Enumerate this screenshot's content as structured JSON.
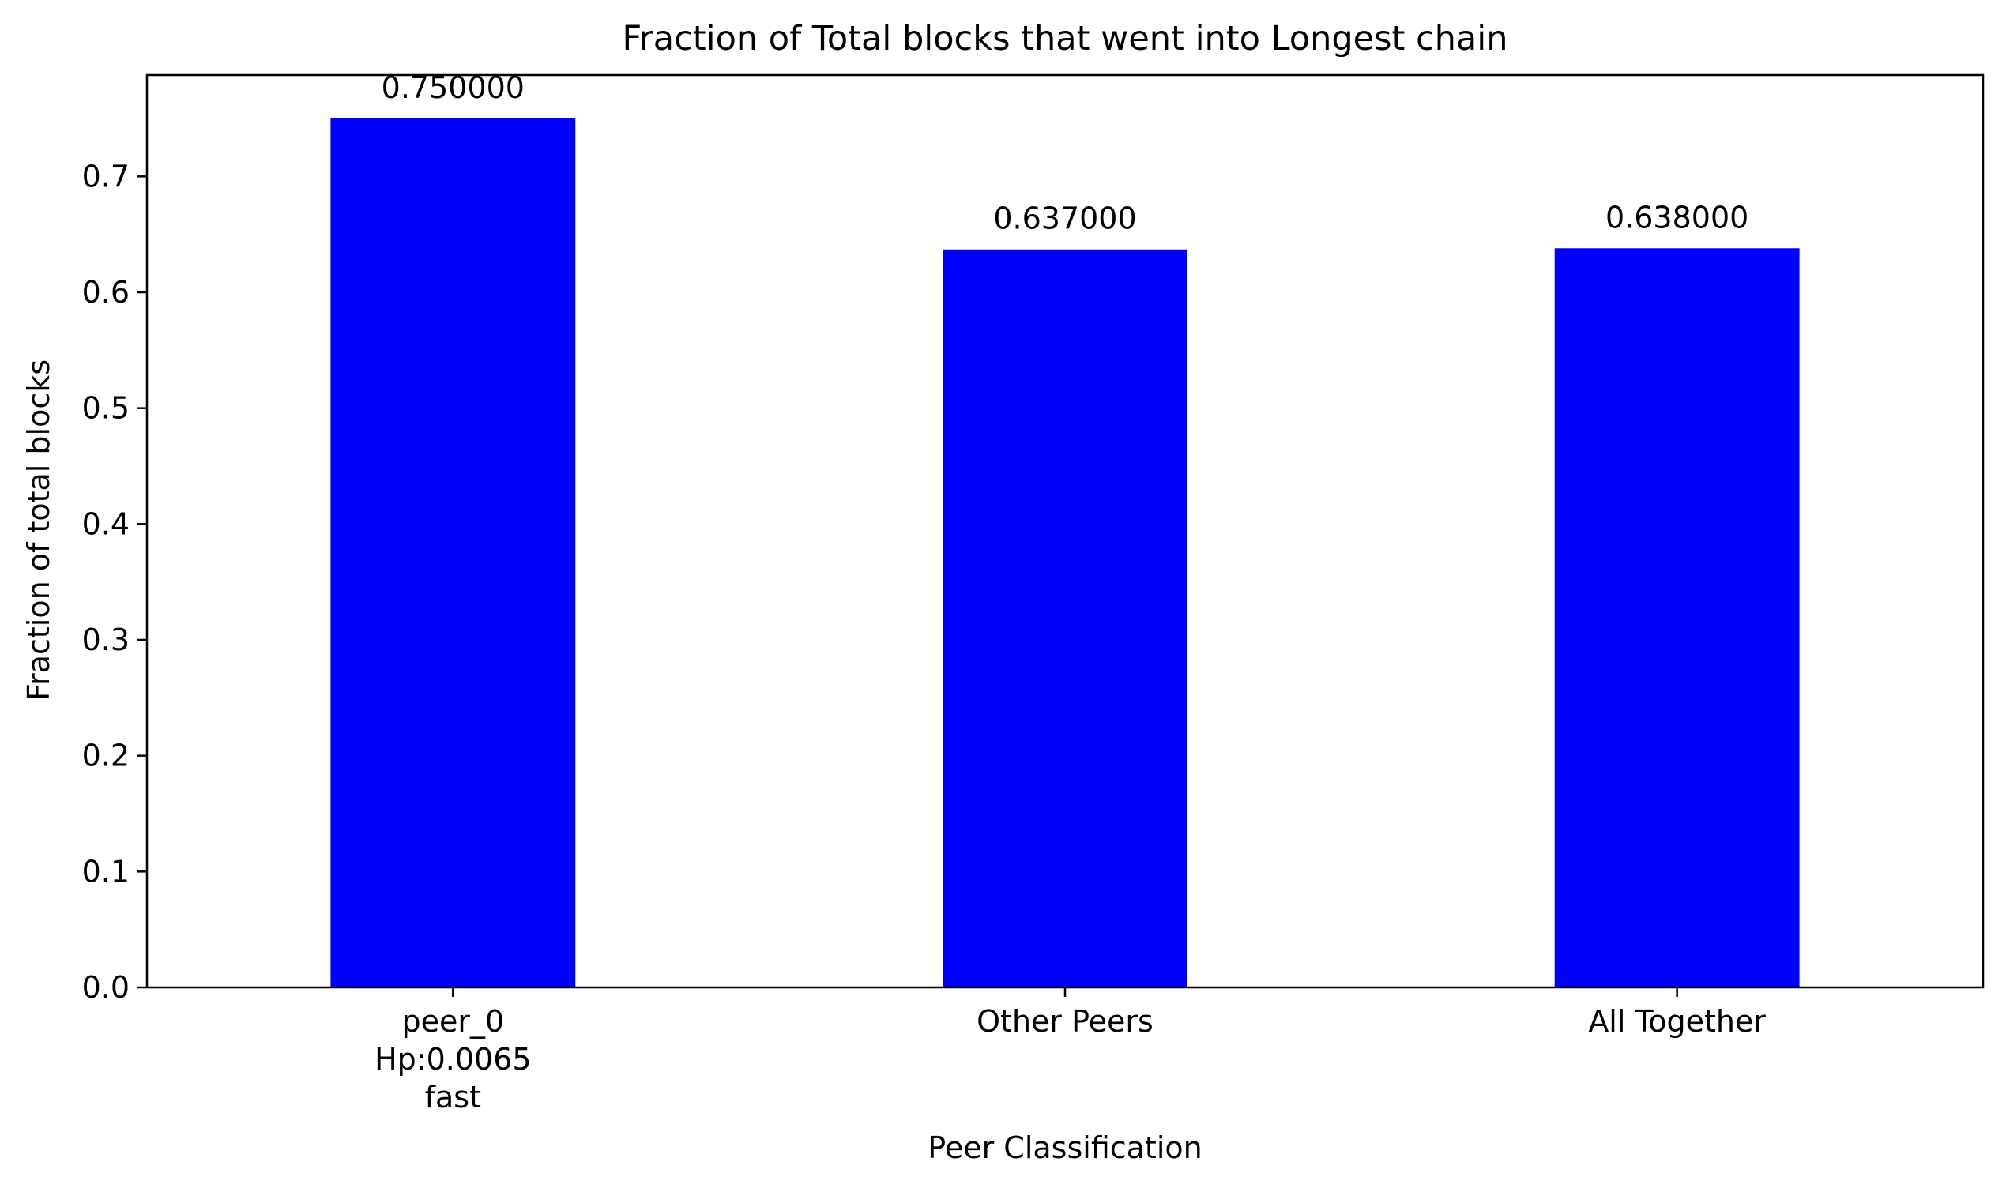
{
  "chart_data": {
    "type": "bar",
    "title": "Fraction of Total blocks that went into Longest chain",
    "xlabel": "Peer Classification",
    "ylabel": "Fraction of total blocks",
    "categories": [
      [
        "peer_0",
        "Hp:0.0065",
        "fast"
      ],
      [
        "Other Peers"
      ],
      [
        "All Together"
      ]
    ],
    "values": [
      0.75,
      0.637,
      0.638
    ],
    "data_labels": [
      "0.750000",
      "0.637000",
      "0.638000"
    ],
    "ylim": [
      0,
      0.7875
    ],
    "yticks": [
      0.0,
      0.1,
      0.2,
      0.3,
      0.4,
      0.5,
      0.6,
      0.7
    ],
    "ytick_labels": [
      "0.0",
      "0.1",
      "0.2",
      "0.3",
      "0.4",
      "0.5",
      "0.6",
      "0.7"
    ],
    "bar_color": "#0000ff",
    "grid": false,
    "legend": false
  }
}
